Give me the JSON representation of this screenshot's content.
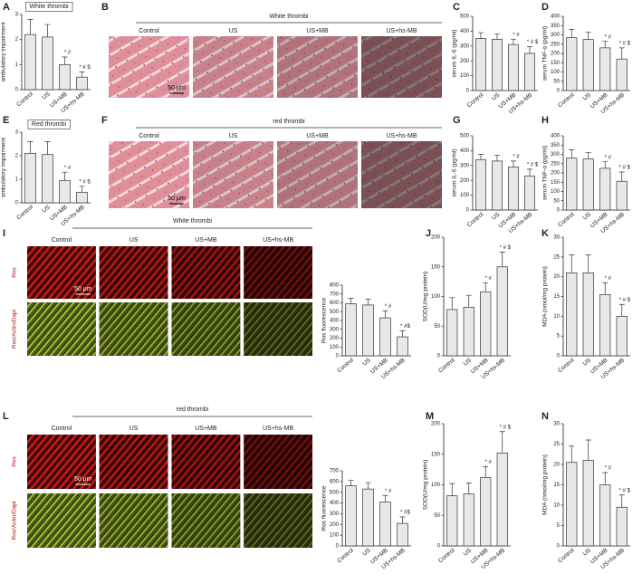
{
  "panel_letters": [
    "A",
    "B",
    "C",
    "D",
    "E",
    "F",
    "G",
    "H",
    "I",
    "J",
    "K",
    "L",
    "M",
    "N"
  ],
  "micrographs": [
    {
      "title": "White thrombi",
      "columns": [
        "Control",
        "US",
        "US+MB",
        "US+hs-MB"
      ],
      "scale_bar": "50 μm"
    },
    {
      "title": "red thrombi",
      "columns": [
        "Control",
        "US",
        "US+MB",
        "US+hs-MB"
      ],
      "scale_bar": "50 μm"
    },
    {
      "title": "White thrombi",
      "columns": [
        "Control",
        "US",
        "US+MB",
        "US+hs-MB"
      ],
      "scale_bar": "50 μm",
      "row_labels": [
        "Ros",
        "Ros/Actin/Dapi"
      ]
    },
    {
      "title": "red thrombi",
      "columns": [
        "Control",
        "US",
        "US+MB",
        "US+hs-MB"
      ],
      "scale_bar": "50 μm",
      "row_labels": [
        "Ros",
        "Ros/Actin/Dapi"
      ]
    }
  ],
  "chart_data": [
    {
      "type": "bar",
      "title": "White thrombi",
      "y_label": "ambulatory impairment",
      "categories": [
        "Control",
        "US",
        "US+MB",
        "US+hs-MB"
      ],
      "values": [
        2.2,
        2.1,
        1.0,
        0.5
      ],
      "errors": [
        0.6,
        0.5,
        0.3,
        0.2
      ],
      "annotations": [
        null,
        null,
        "* #",
        "* # $"
      ],
      "ylim": [
        0,
        3
      ],
      "yticks": [
        0,
        1,
        2,
        3
      ],
      "color": "#e8e8e8"
    },
    {
      "type": "bar",
      "y_label": "serum IL-6 (pg/ml)",
      "categories": [
        "Control",
        "US",
        "US+MB",
        "US+hs-MB"
      ],
      "values": [
        350,
        345,
        310,
        250
      ],
      "errors": [
        40,
        35,
        35,
        45
      ],
      "annotations": [
        null,
        null,
        "* #",
        "* # $"
      ],
      "ylim": [
        0,
        500
      ],
      "yticks": [
        0,
        100,
        200,
        300,
        400,
        500
      ],
      "color": "#e8e8e8"
    },
    {
      "type": "bar",
      "y_label": "serum TNF-α (pg/ml)",
      "categories": [
        "Control",
        "US",
        "US+MB",
        "US+hs-MB"
      ],
      "values": [
        285,
        275,
        230,
        170
      ],
      "errors": [
        45,
        40,
        35,
        60
      ],
      "annotations": [
        null,
        null,
        "* #",
        "* # $"
      ],
      "ylim": [
        0,
        400
      ],
      "yticks": [
        0,
        50,
        100,
        150,
        200,
        250,
        300,
        350,
        400
      ],
      "color": "#e8e8e8"
    },
    {
      "type": "bar",
      "title": "Red thrombi",
      "y_label": "ambulatory impairment",
      "categories": [
        "Control",
        "US",
        "US+MB",
        "US+hs-MB"
      ],
      "values": [
        2.1,
        2.05,
        0.95,
        0.45
      ],
      "errors": [
        0.5,
        0.55,
        0.35,
        0.25
      ],
      "annotations": [
        null,
        null,
        "* #",
        "* # $"
      ],
      "ylim": [
        0,
        3
      ],
      "yticks": [
        0,
        1,
        2,
        3
      ],
      "color": "#e8e8e8"
    },
    {
      "type": "bar",
      "y_label": "serum IL-6 (pg/ml)",
      "categories": [
        "Control",
        "US",
        "US+MB",
        "US+hs-MB"
      ],
      "values": [
        340,
        330,
        290,
        230
      ],
      "errors": [
        35,
        40,
        40,
        45
      ],
      "annotations": [
        null,
        null,
        "* #",
        "* # $"
      ],
      "ylim": [
        0,
        500
      ],
      "yticks": [
        0,
        100,
        200,
        300,
        400,
        500
      ],
      "color": "#e8e8e8"
    },
    {
      "type": "bar",
      "y_label": "serum TNF-α (pg/ml)",
      "categories": [
        "Control",
        "US",
        "US+MB",
        "US+hs-MB"
      ],
      "values": [
        280,
        275,
        225,
        155
      ],
      "errors": [
        45,
        35,
        35,
        50
      ],
      "annotations": [
        null,
        null,
        "* #",
        "* # $"
      ],
      "ylim": [
        0,
        400
      ],
      "yticks": [
        0,
        50,
        100,
        150,
        200,
        250,
        300,
        350,
        400
      ],
      "color": "#e8e8e8"
    },
    {
      "type": "bar",
      "y_label": "Ros fluorescence",
      "categories": [
        "Control",
        "US",
        "US+MB",
        "US+hs-MB"
      ],
      "values": [
        590,
        575,
        430,
        215
      ],
      "errors": [
        60,
        65,
        80,
        70
      ],
      "annotations": [
        null,
        null,
        "* #",
        "* #$"
      ],
      "ylim": [
        0,
        800
      ],
      "yticks": [
        0,
        100,
        200,
        300,
        400,
        500,
        600,
        700,
        800
      ],
      "color": "#e8e8e8"
    },
    {
      "type": "bar",
      "y_label": "SOD(U/mg protein)",
      "categories": [
        "Control",
        "US",
        "US+MB",
        "US+hs-MB"
      ],
      "values": [
        78,
        82,
        108,
        150
      ],
      "errors": [
        20,
        20,
        15,
        25
      ],
      "annotations": [
        null,
        null,
        "* #",
        "* # $"
      ],
      "ylim": [
        0,
        200
      ],
      "yticks": [
        0,
        50,
        100,
        150,
        200
      ],
      "color": "#e8e8e8"
    },
    {
      "type": "bar",
      "y_label": "MDA (nmol/mg protein)",
      "categories": [
        "Control",
        "US",
        "US+MB",
        "US+hs-MB"
      ],
      "values": [
        21,
        21,
        15.5,
        10
      ],
      "errors": [
        4.5,
        4.5,
        3,
        3
      ],
      "annotations": [
        null,
        null,
        "* #",
        "* # $"
      ],
      "ylim": [
        0,
        30
      ],
      "yticks": [
        0,
        5,
        10,
        15,
        20,
        25,
        30
      ],
      "color": "#e8e8e8"
    },
    {
      "type": "bar",
      "y_label": "Ros fluorescence",
      "categories": [
        "Control",
        "US",
        "US+MB",
        "US+hs-MB"
      ],
      "values": [
        560,
        530,
        410,
        210
      ],
      "errors": [
        50,
        60,
        60,
        60
      ],
      "annotations": [
        null,
        null,
        "* #",
        "* #$"
      ],
      "ylim": [
        0,
        700
      ],
      "yticks": [
        0,
        100,
        200,
        300,
        400,
        500,
        600,
        700
      ],
      "color": "#e8e8e8"
    },
    {
      "type": "bar",
      "y_label": "SOD(U/mg protein)",
      "categories": [
        "Control",
        "US",
        "US+MB",
        "US+hs-MB"
      ],
      "values": [
        82,
        85,
        112,
        152
      ],
      "errors": [
        20,
        18,
        18,
        35
      ],
      "annotations": [
        null,
        null,
        "* #",
        "* # $"
      ],
      "ylim": [
        0,
        200
      ],
      "yticks": [
        0,
        50,
        100,
        150,
        200
      ],
      "color": "#e8e8e8"
    },
    {
      "type": "bar",
      "y_label": "MDA (nmol/mg protein)",
      "categories": [
        "Control",
        "US",
        "US+MB",
        "US+hs-MB"
      ],
      "values": [
        20.5,
        21,
        15,
        9.5
      ],
      "errors": [
        4,
        5,
        3,
        3
      ],
      "annotations": [
        null,
        null,
        "* #",
        "* # $"
      ],
      "ylim": [
        0,
        30
      ],
      "yticks": [
        0,
        5,
        10,
        15,
        20,
        25,
        30
      ],
      "color": "#e8e8e8"
    }
  ]
}
